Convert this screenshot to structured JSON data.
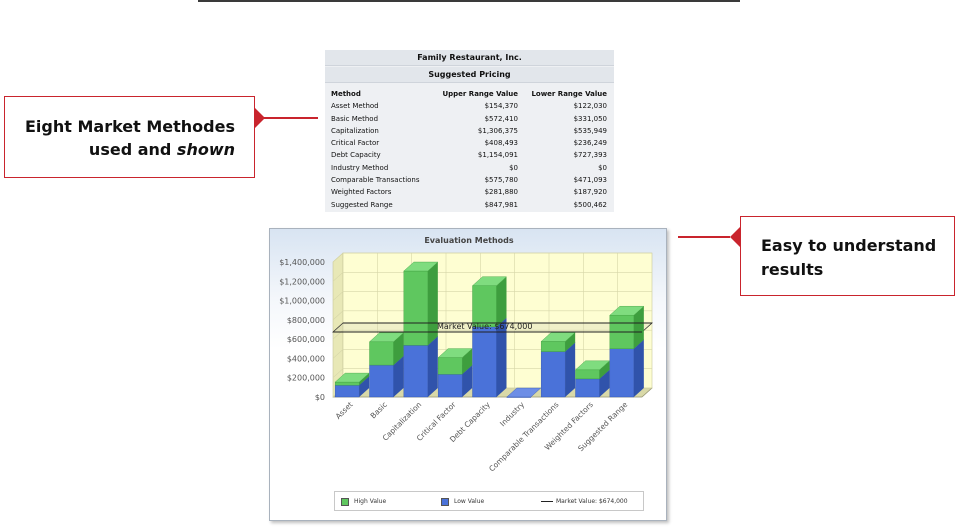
{
  "table": {
    "company": "Family Restaurant, Inc.",
    "subtitle": "Suggested Pricing",
    "headers": {
      "method": "Method",
      "upper": "Upper Range Value",
      "lower": "Lower Range Value"
    },
    "rows": [
      {
        "method": "Asset Method",
        "upper": "$154,370",
        "lower": "$122,030"
      },
      {
        "method": "Basic Method",
        "upper": "$572,410",
        "lower": "$331,050"
      },
      {
        "method": "Capitalization",
        "upper": "$1,306,375",
        "lower": "$535,949"
      },
      {
        "method": "Critical Factor",
        "upper": "$408,493",
        "lower": "$236,249"
      },
      {
        "method": "Debt Capacity",
        "upper": "$1,154,091",
        "lower": "$727,393"
      },
      {
        "method": "Industry Method",
        "upper": "$0",
        "lower": "$0"
      },
      {
        "method": "Comparable Transactions",
        "upper": "$575,780",
        "lower": "$471,093"
      },
      {
        "method": "Weighted Factors",
        "upper": "$281,880",
        "lower": "$187,920"
      },
      {
        "method": "Suggested Range",
        "upper": "$847,981",
        "lower": "$500,462"
      }
    ]
  },
  "callouts": {
    "left": {
      "line1": "Eight Market Methodes",
      "line2a": "used and ",
      "line2b": "shown"
    },
    "right": {
      "line1": "Easy to understand",
      "line2": "results"
    }
  },
  "colors": {
    "high_front": "#5fc75f",
    "high_top": "#7fdc7f",
    "high_side": "#3e9e3e",
    "low_front": "#4a72d9",
    "low_top": "#6d8ee6",
    "low_side": "#3053ab",
    "wall": "#fefed2",
    "grid": "#d6d6a8",
    "accent": "#c9242d"
  },
  "chart_data": {
    "type": "bar",
    "stacked": true,
    "title": "Evaluation Methods",
    "categories": [
      "Asset",
      "Basic",
      "Capitalization",
      "Critical Factor",
      "Debt Capacity",
      "Industry",
      "Comparable Transactions",
      "Weighted Factors",
      "Suggested Range"
    ],
    "series": [
      {
        "name": "Low Value",
        "values": [
          122030,
          331050,
          535949,
          236249,
          727393,
          0,
          471093,
          187920,
          500462
        ]
      },
      {
        "name": "High Value",
        "values": [
          32340,
          241360,
          770426,
          172244,
          426698,
          0,
          104687,
          93960,
          347519
        ]
      }
    ],
    "y_ticks": [
      "$0",
      "$200,000",
      "$400,000",
      "$600,000",
      "$800,000",
      "$1,000,000",
      "$1,200,000",
      "$1,400,000"
    ],
    "ylim": [
      0,
      1400000
    ],
    "grid": true,
    "reference_line": {
      "label": "Market Value:  $674,000",
      "value": 674000
    },
    "legend": {
      "position": "bottom",
      "high": "High Value",
      "low": "Low Value",
      "market": "Market Value:  $674,000"
    }
  }
}
